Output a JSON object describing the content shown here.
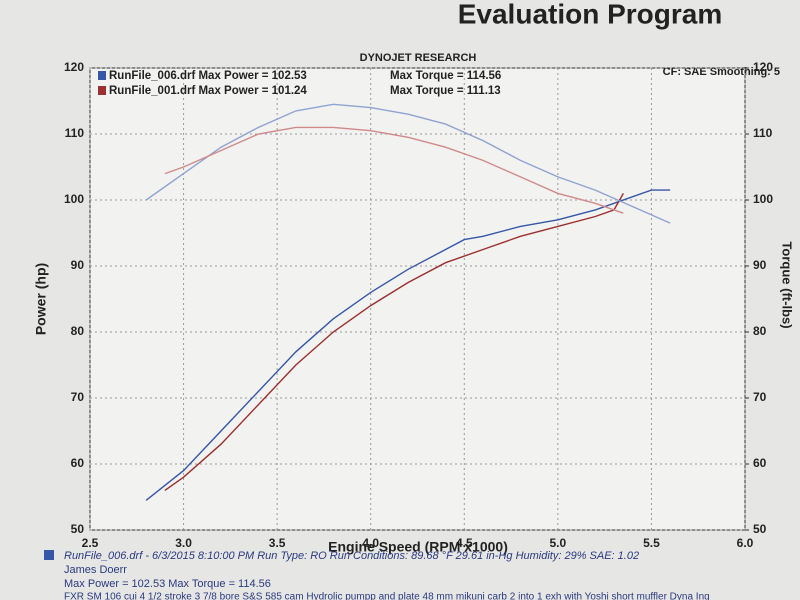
{
  "header": {
    "title": "Evaluation Program"
  },
  "chart_data": {
    "type": "line",
    "title": "DYNOJET RESEARCH",
    "subtitle": "CF: SAE  Smoothing: 5",
    "x_label": "Engine Speed (RPM x1000)",
    "y_label": "Power (hp)",
    "y2_label": "Torque (ft-lbs)",
    "xlim": [
      2.5,
      6.0
    ],
    "xticks": [
      2.5,
      {
        "value": 3,
        "label": "3.0"
      },
      3.5,
      {
        "value": 4,
        "label": "4.0"
      },
      4.5,
      {
        "value": 5,
        "label": "5.0"
      },
      5.5,
      {
        "value": 6,
        "label": "6.0"
      }
    ],
    "ylim": [
      50,
      120
    ],
    "yticks": [
      50,
      60,
      70,
      80,
      90,
      100,
      110,
      120
    ],
    "y2lim": [
      50,
      120
    ],
    "y2ticks": [
      50,
      60,
      70,
      80,
      90,
      100,
      110,
      120
    ],
    "grid": true,
    "series": [
      {
        "name": "RunFile_006.drf Max Power = 102.53",
        "color": "#3656a8",
        "x": [
          2.8,
          3.0,
          3.2,
          3.4,
          3.6,
          3.8,
          4.0,
          4.2,
          4.4,
          4.5,
          4.6,
          4.8,
          5.0,
          5.2,
          5.4,
          5.5,
          5.6
        ],
        "values": [
          54.5,
          59,
          65,
          71,
          77,
          82,
          86,
          89.5,
          92.5,
          94,
          94.5,
          96,
          97,
          98.5,
          100.5,
          101.5,
          101.5
        ]
      },
      {
        "name": "RunFile_001.drf Max Power = 101.24",
        "color": "#9c2f2f",
        "x": [
          2.9,
          3.0,
          3.2,
          3.4,
          3.6,
          3.8,
          4.0,
          4.2,
          4.4,
          4.6,
          4.8,
          5.0,
          5.2,
          5.3,
          5.35
        ],
        "values": [
          56,
          58,
          63,
          69,
          75,
          80,
          84,
          87.5,
          90.5,
          92.5,
          94.5,
          96,
          97.5,
          98.5,
          101
        ]
      },
      {
        "name": "Max Torque = 114.56",
        "color": "#8ea3d2",
        "axis": "y2",
        "x": [
          2.8,
          3.0,
          3.2,
          3.4,
          3.6,
          3.8,
          4.0,
          4.2,
          4.4,
          4.6,
          4.8,
          5.0,
          5.2,
          5.4,
          5.6
        ],
        "values": [
          100,
          104,
          108,
          111,
          113.5,
          114.5,
          114,
          113,
          111.5,
          109,
          106,
          103.5,
          101.5,
          99,
          96.5
        ]
      },
      {
        "name": "Max Torque = 111.13",
        "color": "#d08a8a",
        "axis": "y2",
        "x": [
          2.9,
          3.0,
          3.2,
          3.4,
          3.6,
          3.8,
          4.0,
          4.2,
          4.4,
          4.6,
          4.8,
          5.0,
          5.2,
          5.35
        ],
        "values": [
          104,
          105,
          107.5,
          110,
          111,
          111,
          110.5,
          109.5,
          108,
          106,
          103.5,
          101,
          99.5,
          98
        ]
      }
    ]
  },
  "footer": {
    "lines": [
      "RunFile_006.drf - 6/3/2015 8:10:00 PM  Run Type: RO  Run Conditions: 89.68 °F 29.61 in-Hg  Humidity: 29%  SAE: 1.02",
      "James Doerr",
      "Max Power = 102.53  Max Torque = 114.56",
      "FXR SM 106 cui 4 1/2 stroke 3 7/8 bore S&S 585 cam Hydrolic pumpp and plate 48 mm mikuni carb 2 into 1 exh with Yoshi short muffler Dyna Ing"
    ]
  }
}
